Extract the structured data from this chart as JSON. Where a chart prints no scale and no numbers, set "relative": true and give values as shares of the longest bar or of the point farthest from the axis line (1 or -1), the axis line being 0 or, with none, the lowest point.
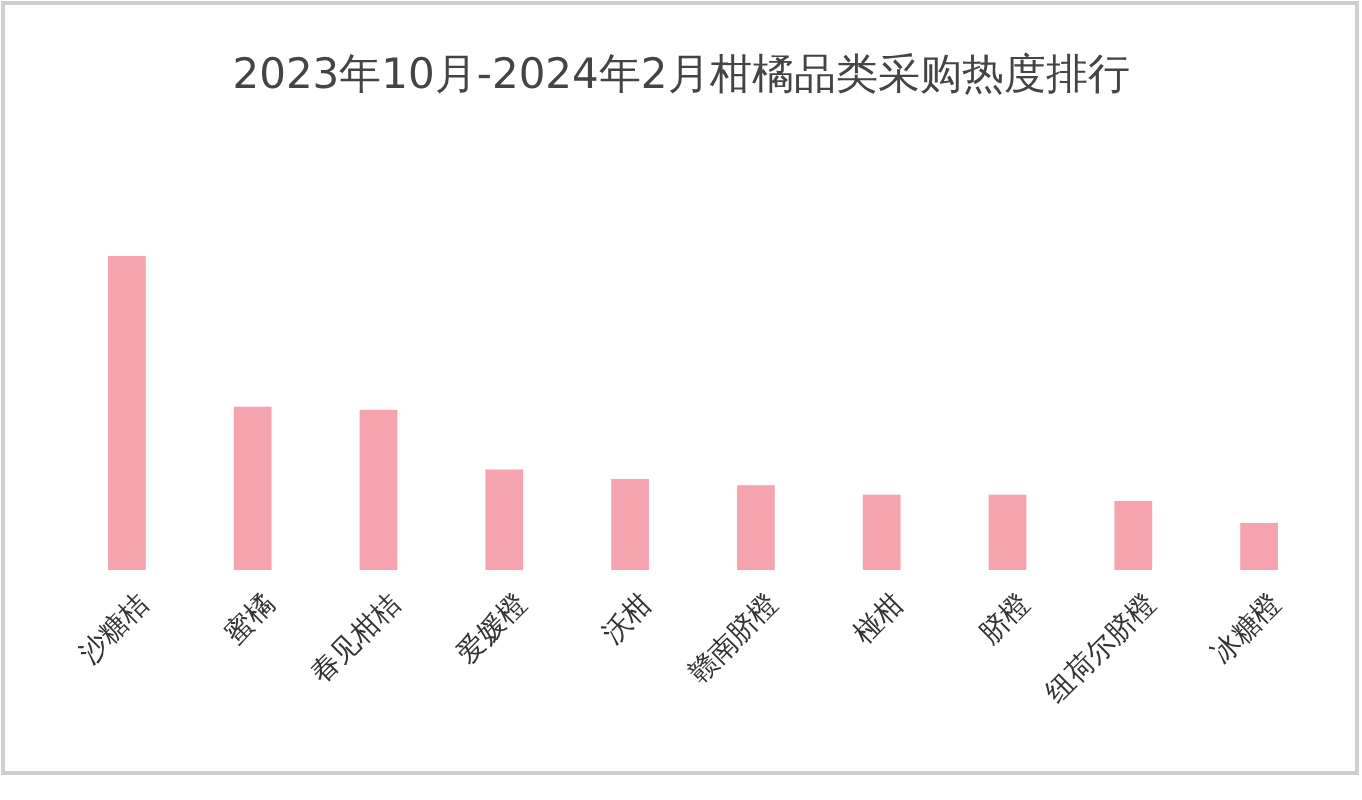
{
  "chart_data": {
    "type": "bar",
    "title": "2023年10月-2024年2月柑橘品类采购热度排行",
    "categories": [
      "沙糖桔",
      "蜜橘",
      "春见柑桔",
      "爱媛橙",
      "沃柑",
      "赣南脐橙",
      "椪柑",
      "脐橙",
      "纽荷尔脐橙",
      "冰糖橙"
    ],
    "values": [
      1,
      0.52,
      0.51,
      0.32,
      0.29,
      0.27,
      0.24,
      0.24,
      0.22,
      0.15
    ],
    "color": "#f6a3b0",
    "relative": true
  }
}
